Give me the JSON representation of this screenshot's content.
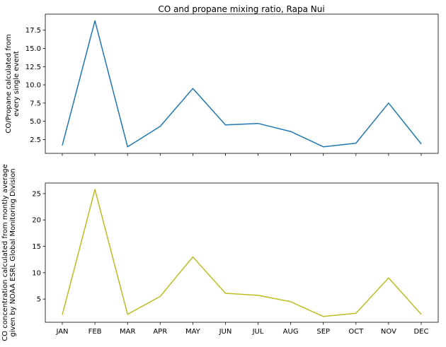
{
  "title": "CO and propane mixing ratio, Rapa Nui",
  "chart_data": [
    {
      "type": "line",
      "title": "CO and propane mixing ratio, Rapa Nui",
      "xlabel": "",
      "ylabel_lines": [
        "CO/Propane calculated from",
        "every single event"
      ],
      "categories": [
        "JAN",
        "FEB",
        "MAR",
        "APR",
        "MAY",
        "JUN",
        "JUL",
        "AUG",
        "SEP",
        "OCT",
        "NOV",
        "DEC"
      ],
      "series": [
        {
          "values": [
            1.7,
            18.8,
            1.5,
            4.3,
            9.5,
            4.5,
            4.7,
            3.6,
            1.5,
            2.0,
            7.5,
            1.9
          ],
          "color": "#1f77b4"
        }
      ],
      "ylim": [
        0.6,
        19.7
      ],
      "yticks": [
        2.5,
        5.0,
        7.5,
        10.0,
        12.5,
        15.0,
        17.5
      ],
      "ytick_labels": [
        "2.5",
        "5.0",
        "7.5",
        "10.0",
        "12.5",
        "15.0",
        "17.5"
      ],
      "show_xtick_labels": false,
      "grid": false
    },
    {
      "type": "line",
      "title": "",
      "xlabel": "",
      "ylabel_lines": [
        "CO concentration calculated from montly average",
        "given by NOAA ESRL Global Monitoring Division"
      ],
      "categories": [
        "JAN",
        "FEB",
        "MAR",
        "APR",
        "MAY",
        "JUN",
        "JUL",
        "AUG",
        "SEP",
        "OCT",
        "NOV",
        "DEC"
      ],
      "series": [
        {
          "values": [
            2.0,
            25.8,
            2.1,
            5.5,
            13.0,
            6.1,
            5.7,
            4.5,
            1.7,
            2.3,
            9.0,
            2.1
          ],
          "color": "#bcbd22"
        }
      ],
      "ylim": [
        0.6,
        27.0
      ],
      "yticks": [
        5,
        10,
        15,
        20,
        25
      ],
      "ytick_labels": [
        "5",
        "10",
        "15",
        "20",
        "25"
      ],
      "show_xtick_labels": true,
      "grid": false
    }
  ]
}
